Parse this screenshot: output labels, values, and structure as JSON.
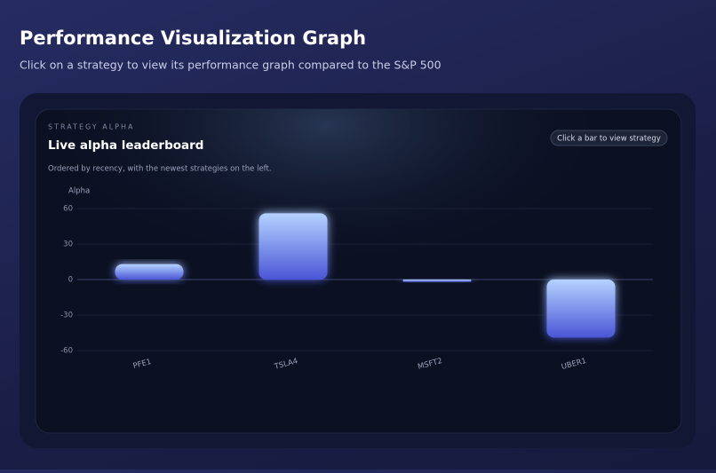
{
  "header": {
    "title": "Performance Visualization Graph",
    "subtitle": "Click on a strategy to view its performance graph compared to the S&P 500"
  },
  "card": {
    "eyebrow": "STRATEGY ALPHA",
    "title": "Live alpha leaderboard",
    "button": "Click a bar to view strategy",
    "description": "Ordered by recency, with the newest strategies on the left."
  },
  "chart_data": {
    "type": "bar",
    "y_label": "Alpha",
    "categories": [
      "PFE1",
      "TSLA4",
      "MSFT2",
      "UBER1"
    ],
    "values": [
      13,
      56,
      -2,
      -49
    ],
    "color": "#4a56d6",
    "ylim": [
      -60,
      60
    ],
    "yticks": [
      -60,
      -30,
      0,
      30,
      60
    ],
    "grid": true
  }
}
